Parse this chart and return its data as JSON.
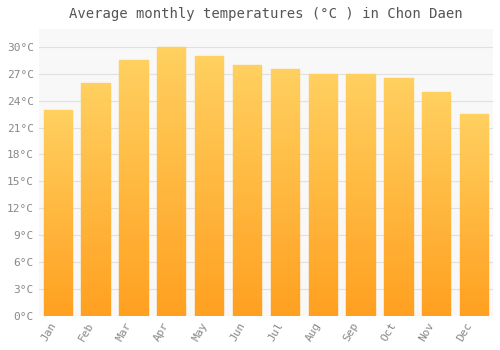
{
  "months": [
    "Jan",
    "Feb",
    "Mar",
    "Apr",
    "May",
    "Jun",
    "Jul",
    "Aug",
    "Sep",
    "Oct",
    "Nov",
    "Dec"
  ],
  "temperatures": [
    23.0,
    26.0,
    28.5,
    30.0,
    29.0,
    28.0,
    27.5,
    27.0,
    27.0,
    26.5,
    25.0,
    22.5
  ],
  "bar_color_top": "#FFD060",
  "bar_color_bottom": "#FFA020",
  "title": "Average monthly temperatures (°C ) in Chon Daen",
  "ylim": [
    0,
    32
  ],
  "yticks": [
    0,
    3,
    6,
    9,
    12,
    15,
    18,
    21,
    24,
    27,
    30
  ],
  "background_color": "#ffffff",
  "plot_bg_color": "#f8f8f8",
  "grid_color": "#e0e0e0",
  "title_fontsize": 10,
  "tick_fontsize": 8,
  "tick_color": "#888888",
  "title_color": "#555555"
}
